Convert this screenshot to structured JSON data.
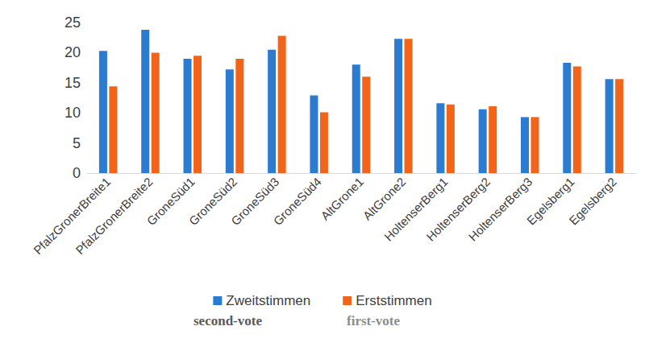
{
  "chart_data": {
    "type": "bar",
    "categories": [
      "PfalzGronerBreite1",
      "PfalzGronerBreite2",
      "GroneSüd1",
      "GroneSüd2",
      "GroneSüd3",
      "GroneSüd4",
      "AltGrone1",
      "AltGrone2",
      "HoltenserBerg1",
      "HoltenserBerg2",
      "HoltenserBerg3",
      "Egelsberg1",
      "Egelsberg2"
    ],
    "series": [
      {
        "name": "Zweitstimmen",
        "color": "#2b7bd1",
        "values": [
          20.3,
          23.8,
          19.0,
          17.2,
          20.5,
          12.9,
          18.0,
          22.3,
          11.6,
          10.6,
          9.3,
          18.3,
          15.6
        ]
      },
      {
        "name": "Erststimmen",
        "color": "#f2641a",
        "values": [
          14.4,
          20.0,
          19.5,
          19.0,
          22.8,
          10.1,
          16.0,
          22.3,
          11.4,
          11.1,
          9.3,
          17.7,
          15.6
        ]
      }
    ],
    "annotations": [
      "second-vote",
      "first-vote"
    ],
    "ylim": [
      0,
      25
    ],
    "yticks": [
      0,
      5,
      10,
      15,
      20,
      25
    ],
    "grid": false,
    "legend": "bottom"
  }
}
